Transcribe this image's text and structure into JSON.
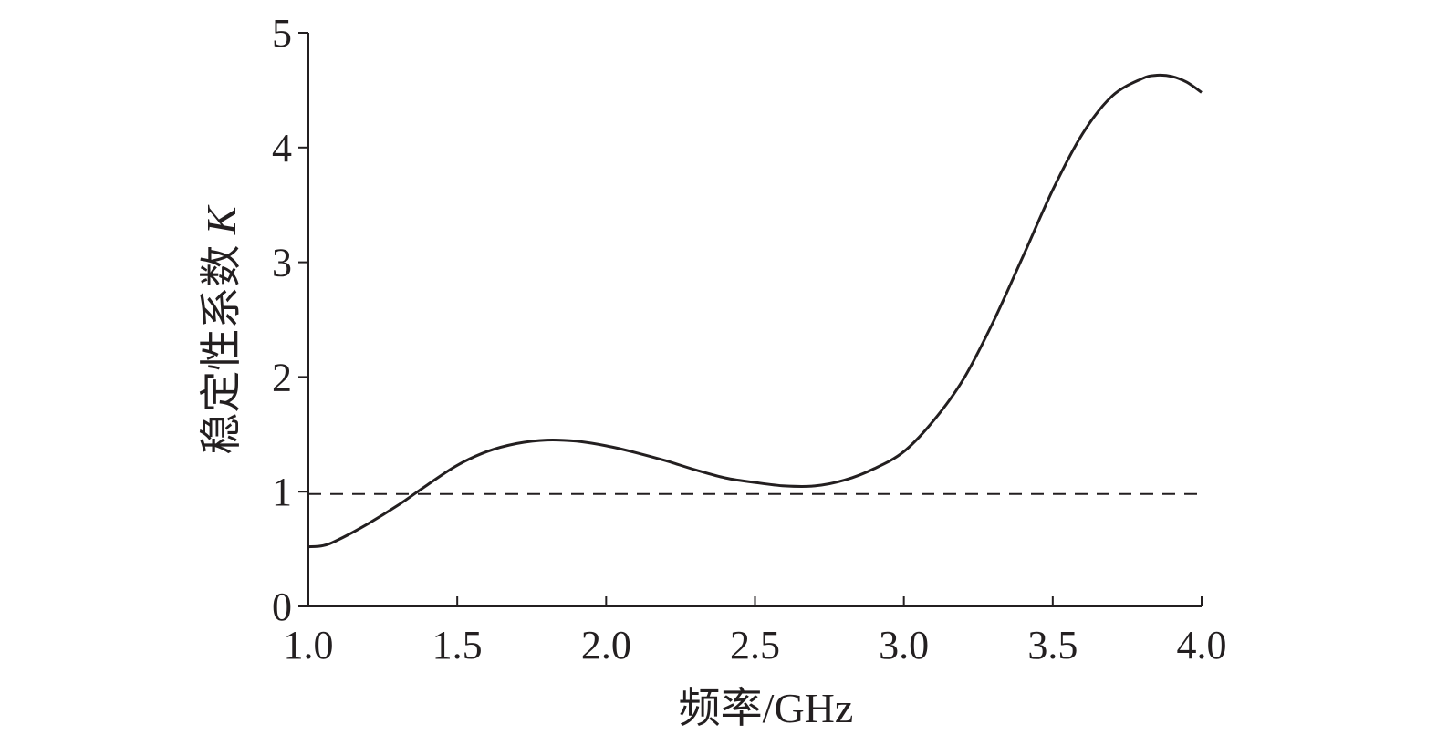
{
  "chart_data": {
    "type": "line",
    "xlabel": "频率/GHz",
    "ylabel_text": "稳定性系数 ",
    "ylabel_symbol": "K",
    "xlim": [
      1.0,
      4.0
    ],
    "ylim": [
      0,
      5
    ],
    "x_ticks": [
      "1.0",
      "1.5",
      "2.0",
      "2.5",
      "3.0",
      "3.5",
      "4.0"
    ],
    "y_ticks": [
      "0",
      "1",
      "2",
      "3",
      "4",
      "5"
    ],
    "grid": false,
    "series": [
      {
        "line_style": "solid",
        "x": [
          1.0,
          1.05,
          1.1,
          1.2,
          1.3,
          1.4,
          1.5,
          1.6,
          1.7,
          1.8,
          1.9,
          2.0,
          2.1,
          2.2,
          2.3,
          2.4,
          2.5,
          2.6,
          2.7,
          2.8,
          2.9,
          3.0,
          3.1,
          3.2,
          3.3,
          3.4,
          3.5,
          3.6,
          3.7,
          3.8,
          3.85,
          3.9,
          3.95,
          4.0
        ],
        "y": [
          0.52,
          0.53,
          0.58,
          0.72,
          0.88,
          1.06,
          1.23,
          1.35,
          1.42,
          1.45,
          1.44,
          1.4,
          1.34,
          1.27,
          1.19,
          1.12,
          1.08,
          1.05,
          1.05,
          1.1,
          1.2,
          1.35,
          1.62,
          1.98,
          2.48,
          3.05,
          3.63,
          4.12,
          4.45,
          4.6,
          4.63,
          4.62,
          4.57,
          4.48
        ]
      },
      {
        "line_style": "dashed",
        "x": [
          1.0,
          4.0
        ],
        "y": [
          0.98,
          0.98
        ]
      }
    ]
  }
}
